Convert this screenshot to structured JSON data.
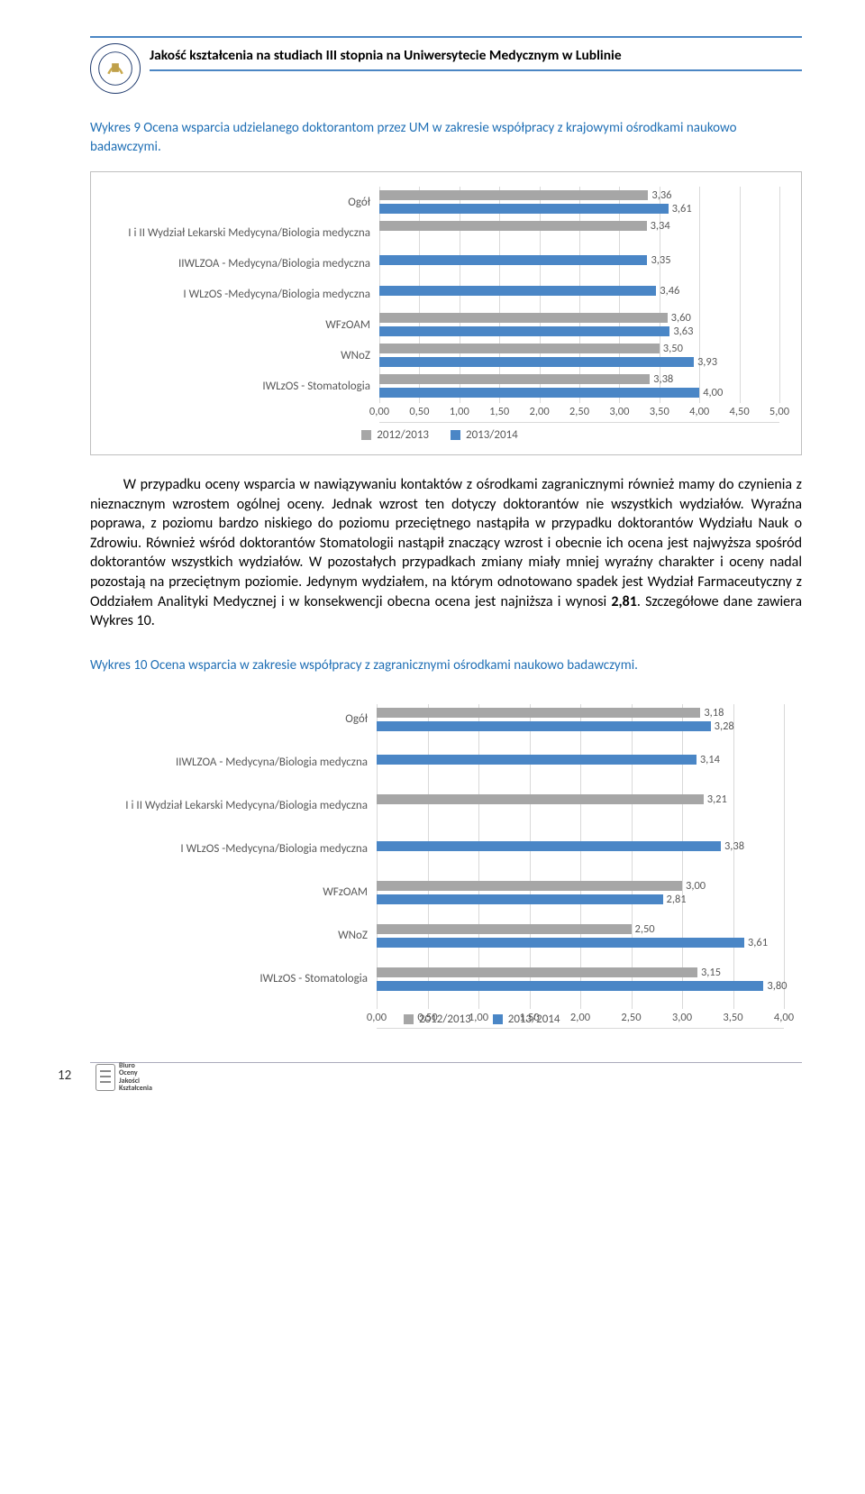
{
  "header": {
    "title": "Jakość kształcenia na studiach III stopnia na Uniwersytecie Medycznym w Lublinie",
    "logo_alt": "UM Lublin"
  },
  "caption1": "Wykres 9 Ocena wsparcia udzielanego doktorantom przez UM w zakresie współpracy z krajowymi ośrodkami naukowo badawczymi.",
  "chart1": {
    "grid_color": "#d9d9d9",
    "series_colors": {
      "2012/2013": "#a6a6a6",
      "2013/2014": "#4a86c6"
    },
    "categories": [
      {
        "label": "Ogół",
        "v2012": 3.36,
        "v2013": 3.61
      },
      {
        "label": "I i II Wydział Lekarski Medycyna/Biologia medyczna",
        "v2012": 3.34,
        "v2013": null
      },
      {
        "label": "IIWLZOA - Medycyna/Biologia medyczna",
        "v2012": null,
        "v2013": 3.35
      },
      {
        "label": "I WLzOS -Medycyna/Biologia medyczna",
        "v2012": null,
        "v2013": 3.46
      },
      {
        "label": "WFzOAM",
        "v2012": 3.6,
        "v2013": 3.63
      },
      {
        "label": "WNoZ",
        "v2012": 3.5,
        "v2013": 3.93
      },
      {
        "label": "IWLzOS - Stomatologia",
        "v2012": 3.38,
        "v2013": 4.0
      }
    ],
    "x_min": 0.0,
    "x_max": 5.0,
    "x_step": 0.5,
    "legend": [
      "2012/2013",
      "2013/2014"
    ]
  },
  "body_text": "W przypadku oceny wsparcia w nawiązywaniu kontaktów z ośrodkami zagranicznymi również mamy do czynienia z nieznacznym wzrostem ogólnej oceny. Jednak wzrost ten dotyczy doktorantów nie wszystkich wydziałów. Wyraźna poprawa, z poziomu bardzo niskiego do poziomu przeciętnego nastąpiła w przypadku doktorantów Wydziału  Nauk o Zdrowiu. Również wśród doktorantów Stomatologii nastąpił znaczący wzrost i obecnie ich ocena jest najwyższa spośród doktorantów wszystkich wydziałów. W pozostałych przypadkach zmiany miały mniej wyraźny charakter i oceny nadal pozostają na przeciętnym poziomie. Jedynym wydziałem, na którym odnotowano spadek jest Wydział Farmaceutyczny z Oddziałem Analityki Medycznej i w konsekwencji obecna ocena jest najniższa i wynosi 2,81. Szczegółowe dane zawiera Wykres 10.",
  "bold_frag": "2,81",
  "caption2": "Wykres 10 Ocena wsparcia w zakresie współpracy  z zagranicznymi ośrodkami naukowo badawczymi.",
  "chart2": {
    "grid_color": "#d9d9d9",
    "series_colors": {
      "2012/2013": "#a6a6a6",
      "2013/2014": "#4a86c6"
    },
    "categories": [
      {
        "label": "Ogół",
        "v2012": 3.18,
        "v2013": 3.28
      },
      {
        "label": "IIWLZOA - Medycyna/Biologia medyczna",
        "v2012": null,
        "v2013": 3.14
      },
      {
        "label": "I i II Wydział Lekarski Medycyna/Biologia medyczna",
        "v2012": 3.21,
        "v2013": null
      },
      {
        "label": "I WLzOS -Medycyna/Biologia medyczna",
        "v2012": null,
        "v2013": 3.38
      },
      {
        "label": "WFzOAM",
        "v2012": 3.0,
        "v2013": 2.81
      },
      {
        "label": "WNoZ",
        "v2012": 2.5,
        "v2013": 3.61
      },
      {
        "label": "IWLzOS - Stomatologia",
        "v2012": 3.15,
        "v2013": 3.8
      }
    ],
    "x_min": 0.0,
    "x_max": 4.0,
    "x_step": 0.5,
    "legend": [
      "2012/2013",
      "2013/2014"
    ]
  },
  "footer": {
    "page_num": "12",
    "biuro": [
      "Biuro",
      "Oceny",
      "Jakości",
      "Kształcenia"
    ]
  }
}
